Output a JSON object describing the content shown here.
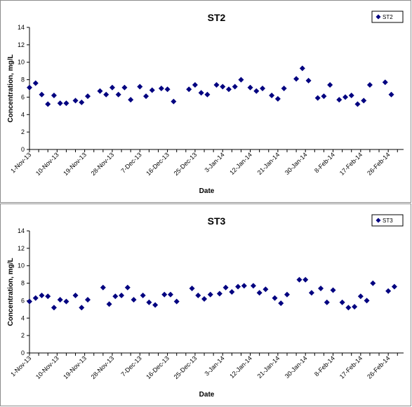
{
  "chart_data": [
    {
      "type": "scatter",
      "title": "ST2",
      "xlabel": "Date",
      "ylabel": "Concentration, mg/L",
      "ylim": [
        0,
        14
      ],
      "yticks": [
        "0",
        "2",
        "4",
        "6",
        "8",
        "10",
        "12",
        "14"
      ],
      "xlim": [
        "2013-11-01",
        "2014-03-03"
      ],
      "xtick_labels": [
        "1-Nov-13",
        "10-Nov-13",
        "19-Nov-13",
        "28-Nov-13",
        "7-Dec-13",
        "16-Dec-13",
        "25-Dec-13",
        "3-Jan-14",
        "12-Jan-14",
        "21-Jan-14",
        "30-Jan-14",
        "8-Feb-14",
        "17-Feb-14",
        "26-Feb-14"
      ],
      "legend_position": "top-right",
      "grid": false,
      "marker_color": "#000080",
      "series": [
        {
          "name": "ST2",
          "points": [
            [
              "2013-11-01",
              7.1
            ],
            [
              "2013-11-03",
              7.6
            ],
            [
              "2013-11-05",
              6.3
            ],
            [
              "2013-11-07",
              5.2
            ],
            [
              "2013-11-09",
              6.2
            ],
            [
              "2013-11-11",
              5.3
            ],
            [
              "2013-11-13",
              5.3
            ],
            [
              "2013-11-16",
              5.6
            ],
            [
              "2013-11-18",
              5.4
            ],
            [
              "2013-11-20",
              6.1
            ],
            [
              "2013-11-24",
              6.7
            ],
            [
              "2013-11-26",
              6.3
            ],
            [
              "2013-11-28",
              7.1
            ],
            [
              "2013-11-30",
              6.3
            ],
            [
              "2013-12-02",
              7.1
            ],
            [
              "2013-12-04",
              5.7
            ],
            [
              "2013-12-07",
              7.2
            ],
            [
              "2013-12-09",
              6.1
            ],
            [
              "2013-12-11",
              6.8
            ],
            [
              "2013-12-14",
              7.0
            ],
            [
              "2013-12-16",
              6.9
            ],
            [
              "2013-12-18",
              5.5
            ],
            [
              "2013-12-23",
              6.9
            ],
            [
              "2013-12-25",
              7.4
            ],
            [
              "2013-12-27",
              6.5
            ],
            [
              "2013-12-29",
              6.3
            ],
            [
              "2014-01-01",
              7.4
            ],
            [
              "2014-01-03",
              7.2
            ],
            [
              "2014-01-05",
              6.9
            ],
            [
              "2014-01-07",
              7.2
            ],
            [
              "2014-01-09",
              8.0
            ],
            [
              "2014-01-12",
              7.1
            ],
            [
              "2014-01-14",
              6.7
            ],
            [
              "2014-01-16",
              7.0
            ],
            [
              "2014-01-19",
              6.2
            ],
            [
              "2014-01-21",
              5.8
            ],
            [
              "2014-01-23",
              7.0
            ],
            [
              "2014-01-27",
              8.1
            ],
            [
              "2014-01-29",
              9.3
            ],
            [
              "2014-01-31",
              7.9
            ],
            [
              "2014-02-03",
              5.9
            ],
            [
              "2014-02-05",
              6.1
            ],
            [
              "2014-02-07",
              7.4
            ],
            [
              "2014-02-10",
              5.7
            ],
            [
              "2014-02-12",
              6.0
            ],
            [
              "2014-02-14",
              6.2
            ],
            [
              "2014-02-16",
              5.2
            ],
            [
              "2014-02-18",
              5.6
            ],
            [
              "2014-02-20",
              7.4
            ],
            [
              "2014-02-25",
              7.7
            ],
            [
              "2014-02-27",
              6.3
            ]
          ]
        }
      ]
    },
    {
      "type": "scatter",
      "title": "ST3",
      "xlabel": "Date",
      "ylabel": "Concentration, mg/L",
      "ylim": [
        0,
        14
      ],
      "yticks": [
        "0",
        "2",
        "4",
        "6",
        "8",
        "10",
        "12",
        "14"
      ],
      "xlim": [
        "2013-11-01",
        "2014-03-03"
      ],
      "xtick_labels": [
        "1-Nov-13",
        "10-Nov-13",
        "19-Nov-13",
        "28-Nov-13",
        "7-Dec-13",
        "16-Dec-13",
        "25-Dec-13",
        "3-Jan-14",
        "12-Jan-14",
        "21-Jan-14",
        "30-Jan-14",
        "8-Feb-14",
        "17-Feb-14",
        "26-Feb-14"
      ],
      "legend_position": "top-right",
      "grid": false,
      "marker_color": "#000080",
      "series": [
        {
          "name": "ST3",
          "points": [
            [
              "2013-11-01",
              5.9
            ],
            [
              "2013-11-03",
              6.3
            ],
            [
              "2013-11-05",
              6.6
            ],
            [
              "2013-11-07",
              6.5
            ],
            [
              "2013-11-09",
              5.2
            ],
            [
              "2013-11-11",
              6.1
            ],
            [
              "2013-11-13",
              5.9
            ],
            [
              "2013-11-16",
              6.6
            ],
            [
              "2013-11-18",
              5.2
            ],
            [
              "2013-11-20",
              6.1
            ],
            [
              "2013-11-25",
              7.5
            ],
            [
              "2013-11-27",
              5.6
            ],
            [
              "2013-11-29",
              6.5
            ],
            [
              "2013-12-01",
              6.6
            ],
            [
              "2013-12-03",
              7.5
            ],
            [
              "2013-12-05",
              6.1
            ],
            [
              "2013-12-08",
              6.6
            ],
            [
              "2013-12-10",
              5.8
            ],
            [
              "2013-12-12",
              5.5
            ],
            [
              "2013-12-15",
              6.7
            ],
            [
              "2013-12-17",
              6.7
            ],
            [
              "2013-12-19",
              5.9
            ],
            [
              "2013-12-24",
              7.4
            ],
            [
              "2013-12-26",
              6.6
            ],
            [
              "2013-12-28",
              6.2
            ],
            [
              "2013-12-30",
              6.7
            ],
            [
              "2014-01-02",
              6.8
            ],
            [
              "2014-01-04",
              7.5
            ],
            [
              "2014-01-06",
              7.0
            ],
            [
              "2014-01-08",
              7.6
            ],
            [
              "2014-01-10",
              7.7
            ],
            [
              "2014-01-13",
              7.7
            ],
            [
              "2014-01-15",
              6.9
            ],
            [
              "2014-01-17",
              7.3
            ],
            [
              "2014-01-20",
              6.3
            ],
            [
              "2014-01-22",
              5.7
            ],
            [
              "2014-01-24",
              6.7
            ],
            [
              "2014-01-28",
              8.4
            ],
            [
              "2014-01-30",
              8.4
            ],
            [
              "2014-02-01",
              6.9
            ],
            [
              "2014-02-04",
              7.4
            ],
            [
              "2014-02-06",
              5.8
            ],
            [
              "2014-02-08",
              7.2
            ],
            [
              "2014-02-11",
              5.8
            ],
            [
              "2014-02-13",
              5.2
            ],
            [
              "2014-02-15",
              5.3
            ],
            [
              "2014-02-17",
              6.5
            ],
            [
              "2014-02-19",
              6.0
            ],
            [
              "2014-02-21",
              8.0
            ],
            [
              "2014-02-26",
              7.1
            ],
            [
              "2014-02-28",
              7.6
            ]
          ]
        }
      ]
    }
  ]
}
